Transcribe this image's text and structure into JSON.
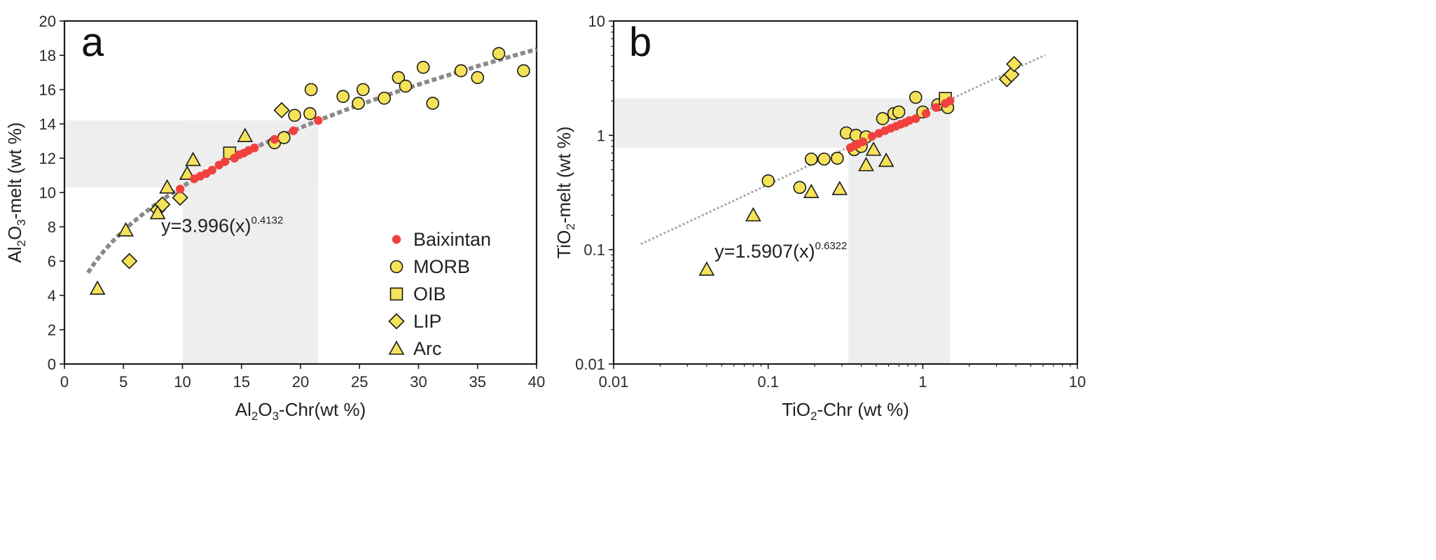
{
  "colors": {
    "marker_fill": "#f5e25a",
    "marker_stroke": "#1a1a1a",
    "baixintan": "#f0413f",
    "fit_a": "#8a8a8a",
    "fit_b": "#a8a8a8",
    "shade": "#eeeeee"
  },
  "chart_data": [
    {
      "panel": "a",
      "type": "scatter",
      "xscale": "linear",
      "yscale": "linear",
      "xlabel_main": "Al",
      "xlabel_sub1": "2",
      "xlabel_mid": "O",
      "xlabel_sub2": "3",
      "xlabel_rest": "-Chr(wt %)",
      "ylabel_main": "Al",
      "ylabel_sub1": "2",
      "ylabel_mid": "O",
      "ylabel_sub2": "3",
      "ylabel_rest": "-melt (wt %)",
      "xlim": [
        0,
        40
      ],
      "ylim": [
        0,
        20
      ],
      "xticks": [
        0,
        5,
        10,
        15,
        20,
        25,
        30,
        35,
        40
      ],
      "xtick_labels": [
        "0",
        "5",
        "10",
        "15",
        "20",
        "25",
        "30",
        "35",
        "40"
      ],
      "yticks": [
        0,
        2,
        4,
        6,
        8,
        10,
        12,
        14,
        16,
        18,
        20
      ],
      "ytick_labels": [
        "0",
        "2",
        "4",
        "6",
        "8",
        "10",
        "12",
        "14",
        "16",
        "18",
        "20"
      ],
      "equation": {
        "text": "y=3.996(x)",
        "exponent": "0.4132",
        "coef": 3.996,
        "power": 0.4132,
        "x_at": 8.2,
        "y_at": 7.7
      },
      "fit_range": [
        2,
        40
      ],
      "shade_regions": [
        {
          "x": [
            0,
            21.5
          ],
          "y": [
            10.3,
            14.2
          ]
        },
        {
          "x": [
            10,
            21.5
          ],
          "y": [
            0,
            14.2
          ]
        }
      ],
      "series": [
        {
          "name": "MORB",
          "marker": "circle",
          "points": [
            [
              17.8,
              12.9
            ],
            [
              18.6,
              13.2
            ],
            [
              19.5,
              14.5
            ],
            [
              20.8,
              14.6
            ],
            [
              20.9,
              16.0
            ],
            [
              23.6,
              15.6
            ],
            [
              24.9,
              15.2
            ],
            [
              25.3,
              16.0
            ],
            [
              27.1,
              15.5
            ],
            [
              28.3,
              16.7
            ],
            [
              28.9,
              16.2
            ],
            [
              30.4,
              17.3
            ],
            [
              31.2,
              15.2
            ],
            [
              33.6,
              17.1
            ],
            [
              35.0,
              16.7
            ],
            [
              36.8,
              18.1
            ],
            [
              38.9,
              17.1
            ]
          ]
        },
        {
          "name": "OIB",
          "marker": "square",
          "points": [
            [
              14.0,
              12.3
            ]
          ]
        },
        {
          "name": "LIP",
          "marker": "diamond",
          "points": [
            [
              5.5,
              6.0
            ],
            [
              7.9,
              9.0
            ],
            [
              8.3,
              9.3
            ],
            [
              9.8,
              9.7
            ],
            [
              18.4,
              14.8
            ]
          ]
        },
        {
          "name": "Arc",
          "marker": "triangle",
          "points": [
            [
              2.8,
              4.4
            ],
            [
              5.2,
              7.8
            ],
            [
              7.9,
              8.8
            ],
            [
              8.7,
              10.3
            ],
            [
              10.4,
              11.1
            ],
            [
              10.9,
              11.9
            ],
            [
              15.3,
              13.3
            ]
          ]
        },
        {
          "name": "Baixintan",
          "marker": "dot",
          "points": [
            [
              9.8,
              10.2
            ],
            [
              11.0,
              10.8
            ],
            [
              11.5,
              10.95
            ],
            [
              12.0,
              11.1
            ],
            [
              12.5,
              11.3
            ],
            [
              13.1,
              11.6
            ],
            [
              13.6,
              11.8
            ],
            [
              14.4,
              12.0
            ],
            [
              14.8,
              12.2
            ],
            [
              15.2,
              12.3
            ],
            [
              15.6,
              12.45
            ],
            [
              16.1,
              12.6
            ],
            [
              17.8,
              13.1
            ],
            [
              19.4,
              13.6
            ],
            [
              21.5,
              14.2
            ]
          ]
        }
      ],
      "legend": [
        "Baixintan",
        "MORB",
        "OIB",
        "LIP",
        "Arc"
      ]
    },
    {
      "panel": "b",
      "type": "scatter",
      "xscale": "log",
      "yscale": "log",
      "xlabel_main": "TiO",
      "xlabel_sub1": "2",
      "xlabel_rest": "-Chr (wt %)",
      "ylabel_main": "TiO",
      "ylabel_sub1": "2",
      "ylabel_rest": "-melt (wt %)",
      "xlim": [
        0.01,
        10
      ],
      "ylim": [
        0.01,
        10
      ],
      "xticks": [
        0.01,
        0.1,
        1,
        10
      ],
      "xtick_labels": [
        "0.01",
        "0.1",
        "1",
        "10"
      ],
      "yticks": [
        0.01,
        0.1,
        1,
        10
      ],
      "ytick_labels": [
        "0.01",
        "0.1",
        "1",
        "10"
      ],
      "equation": {
        "text": "y=1.5907(x)",
        "exponent": "0.6322",
        "coef": 1.5907,
        "power": 0.6322,
        "x_at": 0.045,
        "y_at": 0.085
      },
      "fit_range": [
        0.015,
        6.2
      ],
      "shade_regions": [
        {
          "x": [
            0.01,
            1.5
          ],
          "y": [
            0.78,
            2.1
          ]
        },
        {
          "x": [
            0.33,
            1.5
          ],
          "y": [
            0.01,
            2.1
          ]
        }
      ],
      "series": [
        {
          "name": "MORB",
          "marker": "circle",
          "points": [
            [
              0.1,
              0.4
            ],
            [
              0.16,
              0.35
            ],
            [
              0.19,
              0.62
            ],
            [
              0.23,
              0.62
            ],
            [
              0.28,
              0.63
            ],
            [
              0.32,
              1.05
            ],
            [
              0.36,
              0.75
            ],
            [
              0.37,
              1.0
            ],
            [
              0.4,
              0.8
            ],
            [
              0.43,
              0.97
            ],
            [
              0.55,
              1.4
            ],
            [
              0.65,
              1.55
            ],
            [
              0.7,
              1.6
            ],
            [
              0.9,
              2.15
            ],
            [
              1.0,
              1.6
            ],
            [
              1.25,
              1.85
            ],
            [
              1.45,
              1.75
            ]
          ]
        },
        {
          "name": "OIB",
          "marker": "square",
          "points": [
            [
              1.4,
              2.1
            ]
          ]
        },
        {
          "name": "LIP",
          "marker": "diamond",
          "points": [
            [
              3.5,
              3.1
            ],
            [
              3.75,
              3.4
            ],
            [
              3.9,
              4.2
            ]
          ]
        },
        {
          "name": "Arc",
          "marker": "triangle",
          "points": [
            [
              0.04,
              0.067
            ],
            [
              0.08,
              0.2
            ],
            [
              0.19,
              0.32
            ],
            [
              0.29,
              0.34
            ],
            [
              0.43,
              0.55
            ],
            [
              0.48,
              0.75
            ],
            [
              0.58,
              0.6
            ]
          ]
        },
        {
          "name": "Baixintan",
          "marker": "dot",
          "points": [
            [
              0.34,
              0.78
            ],
            [
              0.36,
              0.81
            ],
            [
              0.38,
              0.84
            ],
            [
              0.41,
              0.88
            ],
            [
              0.47,
              0.98
            ],
            [
              0.52,
              1.04
            ],
            [
              0.57,
              1.1
            ],
            [
              0.62,
              1.15
            ],
            [
              0.67,
              1.2
            ],
            [
              0.72,
              1.25
            ],
            [
              0.77,
              1.29
            ],
            [
              0.82,
              1.35
            ],
            [
              0.9,
              1.4
            ],
            [
              1.05,
              1.55
            ],
            [
              1.22,
              1.75
            ],
            [
              1.4,
              1.9
            ],
            [
              1.5,
              2.0
            ]
          ]
        }
      ]
    }
  ]
}
